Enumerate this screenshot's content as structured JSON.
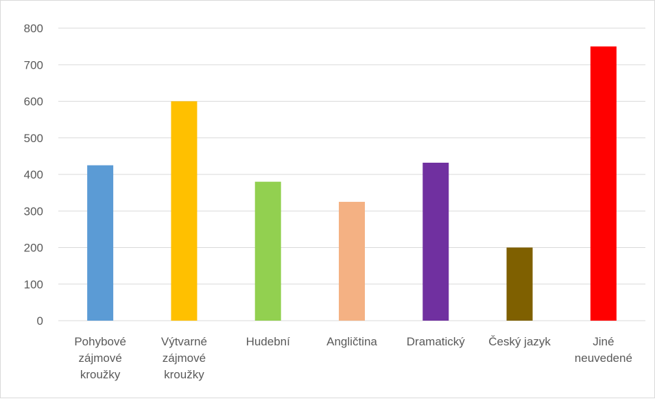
{
  "chart_data": {
    "type": "bar",
    "categories": [
      [
        "Pohybové",
        "zájmové",
        "kroužky"
      ],
      [
        "Výtvarné",
        "zájmové",
        "kroužky"
      ],
      [
        "Hudební"
      ],
      [
        "Angličtina"
      ],
      [
        "Dramatický"
      ],
      [
        "Český jazyk"
      ],
      [
        "Jiné",
        "neuvedené"
      ]
    ],
    "values": [
      425,
      600,
      380,
      325,
      432,
      200,
      750
    ],
    "colors": [
      "#5b9bd5",
      "#ffc000",
      "#92d050",
      "#f4b183",
      "#7030a0",
      "#7f6000",
      "#ff0000"
    ],
    "ylim": [
      0,
      800
    ],
    "yticks": [
      0,
      100,
      200,
      300,
      400,
      500,
      600,
      700,
      800
    ],
    "grid": true,
    "legend": "none",
    "title": "",
    "xlabel": "",
    "ylabel": ""
  }
}
